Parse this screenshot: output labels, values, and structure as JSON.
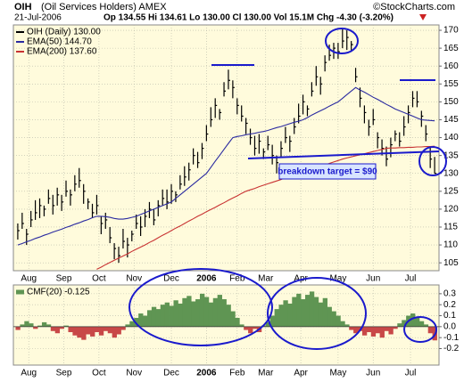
{
  "header": {
    "symbol": "OIH",
    "name": "(Oil Services Holders) AMEX",
    "date": "21-Jul-2006",
    "quote": "Op 134.55 Hi 134.61 Lo 130.00 Cl 130.00 Vol 15.1M Chg -4.30 (-3.20%)",
    "credit": "©StockCharts.com"
  },
  "chart_data": [
    {
      "type": "ohlc",
      "annotation": "breakdown target = $90",
      "xlim": [
        -1,
        96
      ],
      "ylim": [
        102.8,
        171.5
      ],
      "yticks": [
        105,
        110,
        115,
        120,
        125,
        130,
        135,
        140,
        145,
        150,
        155,
        160,
        165,
        170
      ],
      "grid": true,
      "xticks": [
        {
          "value": 2.5,
          "label": "Aug"
        },
        {
          "value": 10.5,
          "label": "Sep"
        },
        {
          "value": 18.5,
          "label": "Oct"
        },
        {
          "value": 26.5,
          "label": "Nov"
        },
        {
          "value": 35,
          "label": "Dec"
        },
        {
          "value": 43,
          "label": "2006",
          "emphasis": true
        },
        {
          "value": 50,
          "label": "Feb"
        },
        {
          "value": 56.5,
          "label": "Mar"
        },
        {
          "value": 64.5,
          "label": "Apr"
        },
        {
          "value": 73,
          "label": "May"
        },
        {
          "value": 81,
          "label": "Jun"
        },
        {
          "value": 89.5,
          "label": "Jul"
        }
      ],
      "series": [
        {
          "name": "OIH (Daily) 130.00",
          "color": "#000000",
          "high": [
            116,
            119,
            114.5,
            119.5,
            122.5,
            123,
            121,
            125.5,
            124,
            126,
            124,
            128,
            125.5,
            129.5,
            131.5,
            127,
            123,
            121.5,
            124,
            118,
            119,
            115,
            110.5,
            109.5,
            114.5,
            112,
            114,
            118.5,
            118,
            120,
            122,
            120,
            122.5,
            125.5,
            125.5,
            127,
            125,
            129.5,
            132,
            133,
            137,
            136,
            138.5,
            143.5,
            148.5,
            151,
            148,
            155.5,
            159,
            156,
            151,
            149,
            145.5,
            142.5,
            140.5,
            141,
            137,
            140.5,
            138,
            135,
            139,
            143,
            140.5,
            145.5,
            149.5,
            152,
            149,
            155.5,
            160,
            157,
            163,
            166,
            166.5,
            166.5,
            170.5,
            170,
            167,
            159.5,
            154,
            149,
            145,
            148,
            141.5,
            139.5,
            137.5,
            140,
            142,
            141.5,
            146,
            149,
            153,
            153,
            147.5,
            143.5,
            137.5,
            134.61
          ],
          "low": [
            111.5,
            114.5,
            110,
            115,
            117,
            117.5,
            118,
            121.5,
            118.5,
            121,
            119.5,
            123.5,
            121,
            125,
            126,
            121.5,
            120,
            117.5,
            118.5,
            113,
            114.5,
            110.5,
            106,
            105,
            109,
            106.5,
            111,
            114.5,
            112.5,
            115,
            117.5,
            115.5,
            118,
            121,
            120,
            121.5,
            122,
            125.5,
            126.5,
            128,
            132.5,
            131.5,
            134,
            139,
            143,
            145.5,
            145,
            151.5,
            153.5,
            151,
            146.5,
            144.5,
            141,
            138,
            135,
            135.5,
            134,
            136.5,
            132.5,
            130,
            134.5,
            138.5,
            136,
            141,
            144,
            146.5,
            146,
            151.5,
            154.5,
            152,
            158.5,
            161.5,
            162,
            162,
            165,
            164.5,
            164,
            155.5,
            148.5,
            144,
            140.5,
            143.5,
            137,
            135,
            132,
            134.5,
            139,
            137.5,
            140.5,
            144,
            148.5,
            148.5,
            143,
            139,
            131.5,
            130
          ],
          "close": [
            114,
            116,
            113,
            117,
            119,
            121,
            120,
            123,
            121,
            124,
            122,
            125,
            124,
            127,
            128,
            125,
            122,
            119,
            121,
            116,
            117,
            112,
            109,
            107,
            111,
            110,
            113,
            116,
            115,
            118,
            120,
            117,
            121,
            123,
            122,
            125,
            124,
            127,
            129,
            131,
            135,
            133,
            137,
            141,
            145,
            149,
            147,
            153,
            156,
            154,
            149,
            146,
            144,
            140,
            137,
            139,
            136,
            138,
            135,
            133,
            137,
            140,
            139,
            143,
            146,
            150,
            148,
            153,
            157,
            155,
            161,
            163,
            165,
            164,
            167,
            168,
            166,
            157,
            151,
            147,
            143,
            145,
            140,
            137,
            134,
            138,
            141,
            139,
            143,
            147,
            151,
            150,
            146,
            141,
            134,
            130
          ]
        },
        {
          "name": "EMA(50) 144.70",
          "color": "#2a2aa0",
          "values": [
            110,
            110.4,
            110.9,
            111.3,
            111.8,
            112.2,
            112.7,
            113.1,
            113.6,
            114,
            114.4,
            114.9,
            115.3,
            115.8,
            116.2,
            116.7,
            117.1,
            117.6,
            118,
            118,
            117.9,
            117.7,
            117.4,
            117.2,
            117.2,
            117.4,
            117.7,
            118,
            118.5,
            119,
            119.5,
            120,
            120.5,
            121,
            121.5,
            122,
            123,
            124,
            125,
            126,
            127,
            128,
            129,
            130,
            131.7,
            133.4,
            135,
            136.7,
            138.4,
            140,
            140.3,
            140.5,
            140.8,
            141,
            141.2,
            141.5,
            141.7,
            142,
            142.4,
            142.8,
            143.1,
            143.5,
            143.9,
            144.3,
            144.6,
            145,
            145.6,
            146.3,
            146.9,
            147.5,
            148.1,
            148.8,
            149.4,
            150,
            151,
            152,
            153,
            154,
            153.3,
            152.7,
            152,
            151.3,
            150.7,
            150,
            149.3,
            148.7,
            148,
            147.5,
            147,
            146.5,
            146,
            145.5,
            145,
            144.9,
            144.8,
            144.7
          ]
        },
        {
          "name": "EMA(200) 137.60",
          "color": "#c83232",
          "values": [
            null,
            null,
            null,
            null,
            null,
            null,
            null,
            null,
            null,
            null,
            null,
            null,
            null,
            null,
            null,
            null,
            null,
            null,
            103.2,
            103.8,
            104.5,
            105.1,
            105.7,
            106.3,
            106.9,
            107.5,
            108.2,
            108.8,
            109.4,
            110,
            110.7,
            111.3,
            112,
            112.7,
            113.3,
            114,
            114.7,
            115.3,
            116,
            116.7,
            117.3,
            118,
            118.6,
            119.3,
            119.9,
            120.5,
            121.2,
            121.8,
            122.5,
            123.1,
            123.7,
            124.4,
            125,
            125.4,
            125.8,
            126.3,
            126.7,
            127.1,
            127.5,
            127.9,
            128.3,
            128.8,
            129.2,
            129.6,
            130,
            130.4,
            130.8,
            131.2,
            131.6,
            132,
            132.4,
            132.8,
            133.2,
            133.6,
            134,
            134.3,
            134.6,
            134.9,
            135.2,
            135.5,
            135.8,
            136.1,
            136.4,
            136.7,
            137,
            137.1,
            137.1,
            137.2,
            137.2,
            137.3,
            137.3,
            137.4,
            137.4,
            137.5,
            137.5,
            137.6
          ]
        }
      ]
    },
    {
      "type": "bar",
      "xlim": [
        -1,
        96
      ],
      "ylim": [
        -0.35,
        0.38
      ],
      "yticks": [
        0.3,
        0.2,
        0.1,
        {
          "value": 0,
          "label": "0.0"
        },
        -0.1,
        -0.2
      ],
      "grid": true,
      "xticks": [
        {
          "value": 2.5,
          "label": "Aug"
        },
        {
          "value": 10.5,
          "label": "Sep"
        },
        {
          "value": 18.5,
          "label": "Oct"
        },
        {
          "value": 26.5,
          "label": "Nov"
        },
        {
          "value": 35,
          "label": "Dec"
        },
        {
          "value": 43,
          "label": "2006",
          "emphasis": true
        },
        {
          "value": 50,
          "label": "Feb"
        },
        {
          "value": 56.5,
          "label": "Mar"
        },
        {
          "value": 64.5,
          "label": "Apr"
        },
        {
          "value": 73,
          "label": "May"
        },
        {
          "value": 81,
          "label": "Jun"
        },
        {
          "value": 89.5,
          "label": "Jul"
        }
      ],
      "series": [
        {
          "name": "CMF(20) -0.125",
          "color": "#5f9553",
          "negative_color": "#c84848",
          "values": [
            -0.03,
            0.02,
            0.05,
            0.03,
            -0.02,
            0.01,
            0.04,
            0.02,
            -0.04,
            -0.06,
            -0.02,
            0.01,
            -0.05,
            -0.08,
            -0.1,
            -0.12,
            -0.07,
            -0.09,
            -0.05,
            -0.08,
            -0.04,
            -0.06,
            -0.1,
            -0.07,
            -0.03,
            0.02,
            0.05,
            0.08,
            0.12,
            0.1,
            0.15,
            0.18,
            0.16,
            0.2,
            0.22,
            0.19,
            0.24,
            0.21,
            0.26,
            0.28,
            0.23,
            0.25,
            0.3,
            0.27,
            0.22,
            0.26,
            0.29,
            0.25,
            0.2,
            0.14,
            0.08,
            0.02,
            -0.03,
            -0.06,
            -0.02,
            -0.05,
            0.01,
            0.04,
            0.1,
            0.16,
            0.2,
            0.24,
            0.21,
            0.27,
            0.3,
            0.25,
            0.29,
            0.32,
            0.27,
            0.22,
            0.26,
            0.18,
            0.14,
            0.1,
            0.05,
            0.02,
            -0.03,
            -0.06,
            -0.04,
            -0.08,
            -0.05,
            -0.09,
            -0.06,
            -0.1,
            -0.04,
            -0.07,
            -0.02,
            0.03,
            0.06,
            0.1,
            0.12,
            0.08,
            0.05,
            0.02,
            -0.06,
            -0.125
          ]
        }
      ]
    }
  ]
}
